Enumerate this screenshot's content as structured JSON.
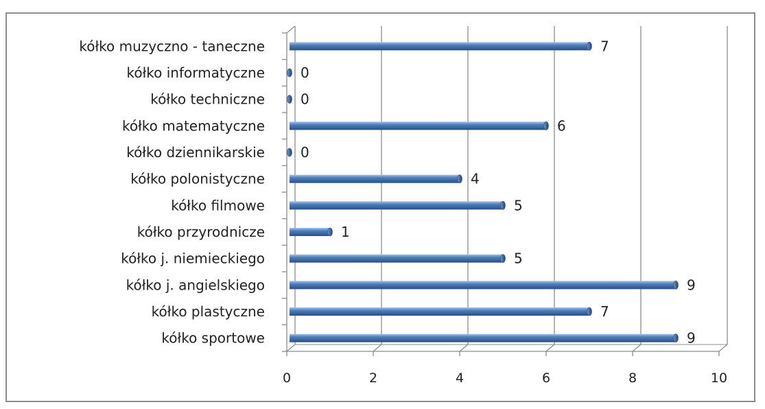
{
  "chart_data": {
    "type": "bar",
    "orientation": "horizontal",
    "title": "",
    "xlabel": "",
    "ylabel": "",
    "categories": [
      "kółko sportowe",
      "kółko plastyczne",
      "kółko j. angielskiego",
      "kółko j. niemieckiego",
      "kółko przyrodnicze",
      "kółko filmowe",
      "kółko polonistyczne",
      "kółko dziennikarskie",
      "kółko matematyczne",
      "kółko techniczne",
      "kółko informatyczne",
      "kółko muzyczno - taneczne"
    ],
    "values": [
      9,
      7,
      9,
      5,
      1,
      5,
      4,
      0,
      6,
      0,
      0,
      7
    ],
    "xlim": [
      0,
      10
    ],
    "xticks": [
      0,
      2,
      4,
      6,
      8,
      10
    ],
    "grid": "vertical",
    "legend": "none",
    "colors": {
      "bar": "#4f81bd",
      "bar_dark": "#2a4f86",
      "bar_light": "#a9c4e6",
      "grid": "#8c8c8c",
      "text": "#222222"
    }
  }
}
